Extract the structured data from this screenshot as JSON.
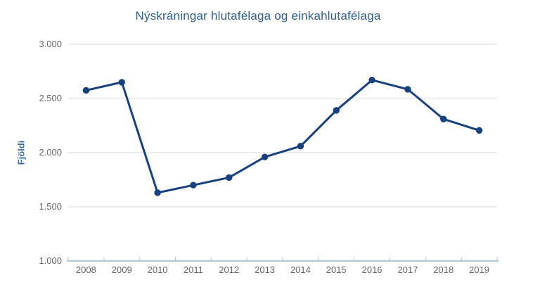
{
  "chart_data": {
    "type": "line",
    "title": "Nýskráningar hlutafélaga og einkahlutafélaga",
    "xlabel": "",
    "ylabel": "Fjöldi",
    "categories": [
      "2008",
      "2009",
      "2010",
      "2011",
      "2012",
      "2013",
      "2014",
      "2015",
      "2016",
      "2017",
      "2018",
      "2019"
    ],
    "series": [
      {
        "name": "Fjöldi",
        "values": [
          2575,
          2650,
          1630,
          1700,
          1770,
          1960,
          2060,
          2390,
          2670,
          2585,
          2310,
          2205
        ]
      }
    ],
    "ylim": [
      1000,
      3000
    ],
    "y_ticks": [
      1000,
      1500,
      2000,
      2500,
      3000
    ],
    "y_tick_labels": [
      "1.000",
      "1.500",
      "2.000",
      "2.500",
      "3.000"
    ],
    "grid": true,
    "legend": "none",
    "marker": "circle",
    "colors": {
      "line": "#17407e",
      "marker": "#17407e",
      "title": "#2d5f8d",
      "y_axis_title": "#3a6da5",
      "tick_label": "#666666",
      "gridline": "#d9d9d9",
      "axis_line": "#b3c6d5",
      "background": "#ffffff"
    }
  }
}
